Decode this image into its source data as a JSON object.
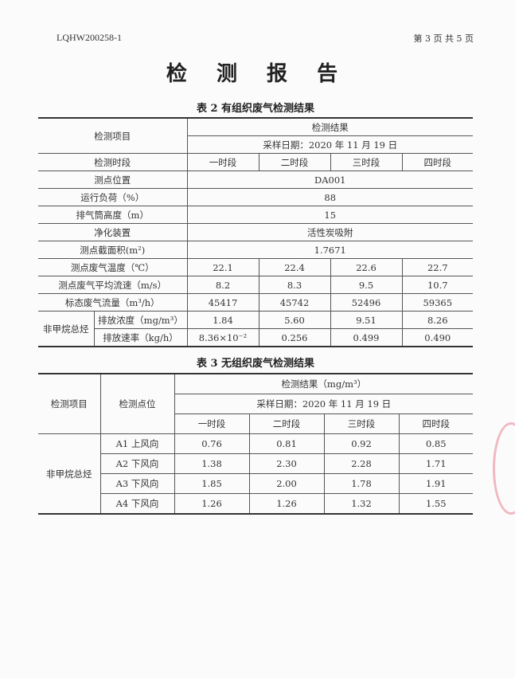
{
  "header": {
    "doc_no": "LQHW200258-1",
    "page": "第 3 页 共 5 页",
    "title": "检 测 报 告"
  },
  "table2": {
    "caption": "表 2 有组织废气检测结果",
    "item_label": "检测项目",
    "result_label": "检测结果",
    "date": "采样日期：2020 年 11 月 19 日",
    "period_label": "检测时段",
    "periods": [
      "一时段",
      "二时段",
      "三时段",
      "四时段"
    ],
    "single_rows": [
      {
        "label": "测点位置",
        "value": "DA001"
      },
      {
        "label": "运行负荷（%）",
        "value": "88"
      },
      {
        "label": "排气筒高度（m）",
        "value": "15"
      },
      {
        "label": "净化装置",
        "value": "活性炭吸附"
      },
      {
        "label": "测点截面积(m²)",
        "value": "1.7671"
      }
    ],
    "multi_rows": [
      {
        "label": "测点废气温度（℃）",
        "values": [
          "22.1",
          "22.4",
          "22.6",
          "22.7"
        ]
      },
      {
        "label": "测点废气平均流速（m/s）",
        "values": [
          "8.2",
          "8.3",
          "9.5",
          "10.7"
        ]
      },
      {
        "label": "标态废气流量（m³/h）",
        "values": [
          "45417",
          "45742",
          "52496",
          "59365"
        ]
      }
    ],
    "group_label": "非甲烷总烃",
    "sub_rows": [
      {
        "label": "排放浓度（mg/m³）",
        "values": [
          "1.84",
          "5.60",
          "9.51",
          "8.26"
        ]
      },
      {
        "label": "排放速率（kg/h）",
        "values": [
          "8.36×10⁻²",
          "0.256",
          "0.499",
          "0.490"
        ]
      }
    ]
  },
  "table3": {
    "caption": "表 3  无组织废气检测结果",
    "item_label": "检测项目",
    "point_label": "检测点位",
    "result_label": "检测结果（mg/m³）",
    "date": "采样日期：2020 年 11 月 19 日",
    "periods": [
      "一时段",
      "二时段",
      "三时段",
      "四时段"
    ],
    "group_label": "非甲烷总烃",
    "rows": [
      {
        "point": "A1 上风向",
        "values": [
          "0.76",
          "0.81",
          "0.92",
          "0.85"
        ]
      },
      {
        "point": "A2 下风向",
        "values": [
          "1.38",
          "2.30",
          "2.28",
          "1.71"
        ]
      },
      {
        "point": "A3 下风向",
        "values": [
          "1.85",
          "2.00",
          "1.78",
          "1.91"
        ]
      },
      {
        "point": "A4 下风向",
        "values": [
          "1.26",
          "1.26",
          "1.32",
          "1.55"
        ]
      }
    ]
  }
}
